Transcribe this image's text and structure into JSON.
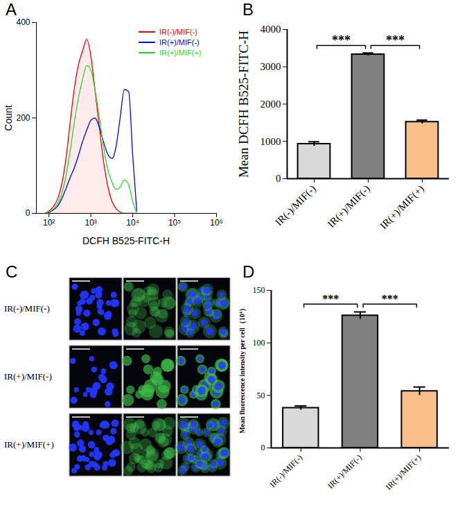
{
  "chart_data": [
    {
      "panel": "A",
      "type": "line",
      "x_label": "DCFH B525-FITC-H",
      "y_label": "Count",
      "log": "x",
      "legend": "top-right",
      "x": [
        80,
        100,
        130,
        160,
        200,
        250,
        320,
        400,
        500,
        630,
        800,
        1000,
        1250,
        1600,
        2000,
        2500,
        3200,
        4000,
        5000,
        6300,
        8000,
        10000,
        12500
      ],
      "xlim": [
        50,
        1000000
      ],
      "xticks": [
        {
          "value": 100,
          "label": "10²"
        },
        {
          "value": 1000,
          "label": "10³"
        },
        {
          "value": 10000,
          "label": "10⁴"
        },
        {
          "value": 100000,
          "label": "10⁵"
        },
        {
          "value": 1000000,
          "label": "10⁶"
        }
      ],
      "ylim": [
        0,
        400
      ],
      "yticks": [
        0,
        200,
        400
      ],
      "series": [
        {
          "name": "IR(-)/MIF(-)",
          "color": "#ff0000",
          "values": [
            0,
            5,
            15,
            30,
            60,
            110,
            190,
            260,
            310,
            340,
            365,
            330,
            260,
            180,
            110,
            60,
            25,
            10,
            3,
            0,
            0,
            0,
            0
          ]
        },
        {
          "name": "IR(+)/MIF(-)",
          "color": "#0000ff",
          "values": [
            0,
            2,
            8,
            15,
            30,
            50,
            75,
            95,
            120,
            150,
            175,
            195,
            200,
            180,
            150,
            125,
            115,
            140,
            200,
            260,
            255,
            120,
            5
          ]
        },
        {
          "name": "IR(+)/MIF(+)",
          "color": "#22dd22",
          "values": [
            0,
            3,
            10,
            20,
            40,
            75,
            130,
            190,
            240,
            280,
            310,
            300,
            260,
            200,
            140,
            95,
            65,
            50,
            55,
            70,
            60,
            25,
            0
          ]
        }
      ]
    },
    {
      "panel": "B",
      "type": "bar",
      "y_label": "Mean DCFH B525-FITC-H",
      "categories": [
        "IR(-)/MIF(-)",
        "IR(+)/MIF(-)",
        "IR(+)/MIF(+)"
      ],
      "values": [
        930,
        3330,
        1520
      ],
      "errors": [
        60,
        40,
        50
      ],
      "colors": [
        "#d9d9d9",
        "#808080",
        "#fbc08a"
      ],
      "ylim": [
        0,
        4000
      ],
      "yticks": [
        0,
        1000,
        2000,
        3000,
        4000
      ],
      "significance": [
        {
          "groups": [
            "IR(-)/MIF(-)",
            "IR(+)/MIF(-)"
          ],
          "label": "***"
        },
        {
          "groups": [
            "IR(+)/MIF(-)",
            "IR(+)/MIF(+)"
          ],
          "label": "***"
        }
      ]
    },
    {
      "panel": "C",
      "type": "image_grid",
      "row_labels": [
        "IR(-)/MIF(-)",
        "IR(+)/MIF(-)",
        "IR(+)/MIF(+)"
      ],
      "image_columns": 3
    },
    {
      "panel": "D",
      "type": "bar",
      "y_label": "Mean fluorescence intensity per cell（10⁴）",
      "categories": [
        "IR(-)/MIF(-)",
        "IR(+)/MIF(-)",
        "IR(+)/MIF(+)"
      ],
      "values": [
        38,
        126,
        54
      ],
      "errors": [
        2,
        3.5,
        4
      ],
      "colors": [
        "#d9d9d9",
        "#808080",
        "#fbc08a"
      ],
      "ylim": [
        0,
        150
      ],
      "yticks": [
        0,
        50,
        100,
        150
      ],
      "significance": [
        {
          "groups": [
            "IR(-)/MIF(-)",
            "IR(+)/MIF(-)"
          ],
          "label": "***"
        },
        {
          "groups": [
            "IR(+)/MIF(-)",
            "IR(+)/MIF(+)"
          ],
          "label": "***"
        }
      ]
    }
  ]
}
